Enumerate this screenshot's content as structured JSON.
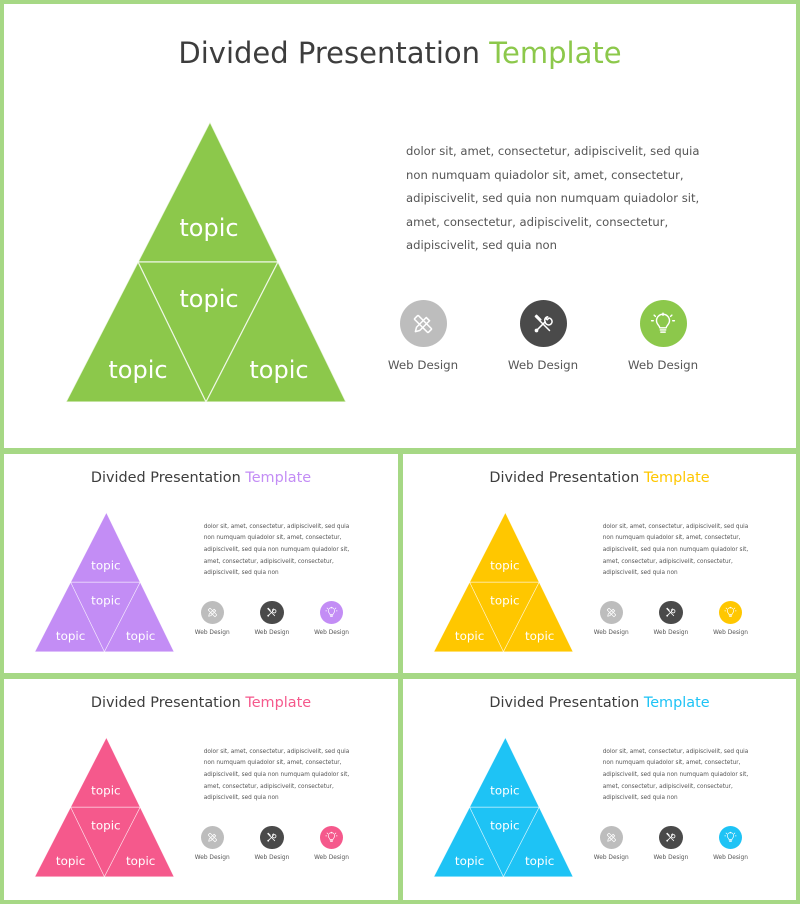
{
  "slides": [
    {
      "title_main": "Divided Presentation",
      "title_accent": "Template",
      "accent": "#8cc84b",
      "topics": [
        "topic",
        "topic",
        "topic",
        "topic"
      ],
      "body_lines": [
        "dolor sit, amet, consectetur, adipiscivelit, sed quia",
        "non numquam quiadolor sit, amet, consectetur,",
        "adipiscivelit, sed quia non numquam quiadolor sit,",
        "amet, consectetur, adipiscivelit, consectetur,",
        "adipiscivelit, sed quia non"
      ],
      "icons": [
        {
          "name": "pencil-ruler-icon",
          "label": "Web Design",
          "color": "#bdbdbd"
        },
        {
          "name": "wrench-screwdriver-icon",
          "label": "Web Design",
          "color": "#4a4a4a"
        },
        {
          "name": "lightbulb-icon",
          "label": "Web Design",
          "color": "#8cc84b"
        }
      ]
    },
    {
      "title_main": "Divided Presentation",
      "title_accent": "Template",
      "accent": "#c38df5",
      "topics": [
        "topic",
        "topic",
        "topic",
        "topic"
      ],
      "body_lines": [
        "dolor sit, amet, consectetur, adipiscivelit, sed quia",
        "non numquam quiadolor sit, amet, consectetur,",
        "adipiscivelit, sed quia non numquam quiadolor sit,",
        "amet, consectetur, adipiscivelit, consectetur,",
        "adipiscivelit, sed quia non"
      ],
      "icons": [
        {
          "name": "pencil-ruler-icon",
          "label": "Web Design",
          "color": "#bdbdbd"
        },
        {
          "name": "wrench-screwdriver-icon",
          "label": "Web Design",
          "color": "#4a4a4a"
        },
        {
          "name": "lightbulb-icon",
          "label": "Web Design",
          "color": "#c38df5"
        }
      ]
    },
    {
      "title_main": "Divided Presentation",
      "title_accent": "Template",
      "accent": "#ffc700",
      "topics": [
        "topic",
        "topic",
        "topic",
        "topic"
      ],
      "body_lines": [
        "dolor sit, amet, consectetur, adipiscivelit, sed quia",
        "non numquam quiadolor sit, amet, consectetur,",
        "adipiscivelit, sed quia non numquam quiadolor sit,",
        "amet, consectetur, adipiscivelit, consectetur,",
        "adipiscivelit, sed quia non"
      ],
      "icons": [
        {
          "name": "pencil-ruler-icon",
          "label": "Web Design",
          "color": "#bdbdbd"
        },
        {
          "name": "wrench-screwdriver-icon",
          "label": "Web Design",
          "color": "#4a4a4a"
        },
        {
          "name": "lightbulb-icon",
          "label": "Web Design",
          "color": "#ffc700"
        }
      ]
    },
    {
      "title_main": "Divided Presentation",
      "title_accent": "Template",
      "accent": "#f5598c",
      "topics": [
        "topic",
        "topic",
        "topic",
        "topic"
      ],
      "body_lines": [
        "dolor sit, amet, consectetur, adipiscivelit, sed quia",
        "non numquam quiadolor sit, amet, consectetur,",
        "adipiscivelit, sed quia non numquam quiadolor sit,",
        "amet, consectetur, adipiscivelit, consectetur,",
        "adipiscivelit, sed quia non"
      ],
      "icons": [
        {
          "name": "pencil-ruler-icon",
          "label": "Web Design",
          "color": "#bdbdbd"
        },
        {
          "name": "wrench-screwdriver-icon",
          "label": "Web Design",
          "color": "#4a4a4a"
        },
        {
          "name": "lightbulb-icon",
          "label": "Web Design",
          "color": "#f5598c"
        }
      ]
    },
    {
      "title_main": "Divided Presentation",
      "title_accent": "Template",
      "accent": "#1ec3f5",
      "topics": [
        "topic",
        "topic",
        "topic",
        "topic"
      ],
      "body_lines": [
        "dolor sit, amet, consectetur, adipiscivelit, sed quia",
        "non numquam quiadolor sit, amet, consectetur,",
        "adipiscivelit, sed quia non numquam quiadolor sit,",
        "amet, consectetur, adipiscivelit, consectetur,",
        "adipiscivelit, sed quia non"
      ],
      "icons": [
        {
          "name": "pencil-ruler-icon",
          "label": "Web Design",
          "color": "#bdbdbd"
        },
        {
          "name": "wrench-screwdriver-icon",
          "label": "Web Design",
          "color": "#4a4a4a"
        },
        {
          "name": "lightbulb-icon",
          "label": "Web Design",
          "color": "#1ec3f5"
        }
      ]
    }
  ]
}
